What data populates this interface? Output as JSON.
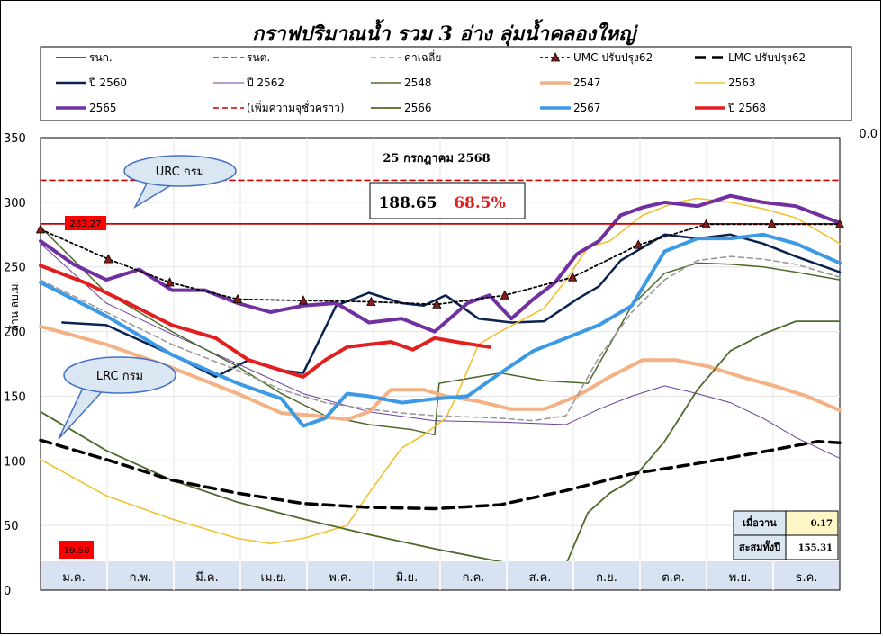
{
  "chart_data": {
    "type": "line",
    "title": "กราฟปริมาณน้ำ รวม 3 อ่าง ลุ่มน้ำคลองใหญ่",
    "ylabel": "ล้าน ลบ.ม.",
    "ylim": [
      0,
      350
    ],
    "yticks": [
      0,
      50,
      100,
      150,
      200,
      250,
      300,
      350
    ],
    "y2_label": "0.0",
    "months": [
      "ม.ค.",
      "ก.พ.",
      "มี.ค.",
      "เม.ย.",
      "พ.ค.",
      "มิ.ย.",
      "ก.ค.",
      "ส.ค.",
      "ก.ย.",
      "ต.ค.",
      "พ.ย.",
      "ธ.ค."
    ],
    "grid": true,
    "legend_position": "top",
    "date_label": "25 กรกฎาคม 2568",
    "current_volume": "188.65",
    "current_percent": "68.5%",
    "urc_label": "URC กรม",
    "lrc_label": "LRC กรม",
    "max_label": "283.27",
    "min_label": "19.50",
    "info_box": [
      {
        "label": "เมื่อวาน",
        "value": "0.17"
      },
      {
        "label": "สะสมทั้งปี",
        "value": "155.31"
      }
    ],
    "series": [
      {
        "name": "รนก.",
        "color": "#cc0000",
        "dash": "solid",
        "width": 1.8,
        "x": [
          0,
          365
        ],
        "y": [
          283.27,
          283.27
        ]
      },
      {
        "name": "รนต.",
        "color": "#cc0000",
        "dash": "dashed",
        "width": 1.6,
        "x": [
          0,
          365
        ],
        "y": [
          19.5,
          19.5
        ]
      },
      {
        "name": "ค่าเฉลี่ย",
        "color": "#9a9a9a",
        "dash": "dashed",
        "width": 1.6,
        "x": [
          0,
          30,
          60,
          90,
          110,
          130,
          150,
          165,
          180,
          195,
          210,
          225,
          240,
          255,
          270,
          285,
          300,
          315,
          330,
          345,
          365
        ],
        "y": [
          240,
          215,
          190,
          170,
          155,
          145,
          140,
          137,
          135,
          134,
          133,
          131,
          135,
          180,
          215,
          240,
          255,
          258,
          256,
          252,
          242
        ]
      },
      {
        "name": "UMC ปรับปรุง62",
        "color": "#000000",
        "dash": "dotted",
        "width": 1.8,
        "marker": "triangle",
        "x": [
          0,
          31,
          59,
          90,
          120,
          151,
          181,
          212,
          243,
          273,
          304,
          334,
          365
        ],
        "y": [
          279,
          256,
          238,
          225,
          224,
          223,
          221,
          228,
          242,
          267,
          283,
          283,
          283
        ]
      },
      {
        "name": "LMC ปรับปรุง62",
        "color": "#000000",
        "dash": "dashed",
        "width": 3.5,
        "x": [
          0,
          30,
          60,
          90,
          120,
          150,
          180,
          210,
          240,
          270,
          300,
          330,
          355,
          365
        ],
        "y": [
          116,
          101,
          85,
          75,
          67,
          64,
          63,
          66,
          77,
          90,
          98,
          107,
          115,
          114
        ]
      },
      {
        "name": "ปี 2560",
        "color": "#0b2250",
        "dash": "solid",
        "width": 2.5,
        "x": [
          10,
          30,
          60,
          80,
          95,
          110,
          120,
          135,
          150,
          165,
          175,
          185,
          200,
          215,
          230,
          245,
          255,
          265,
          275,
          285,
          300,
          315,
          330,
          345,
          365
        ],
        "y": [
          207,
          205,
          182,
          165,
          178,
          170,
          168,
          220,
          230,
          222,
          220,
          228,
          210,
          207,
          208,
          225,
          235,
          255,
          265,
          275,
          272,
          275,
          268,
          258,
          246
        ]
      },
      {
        "name": "ปี 2562",
        "color": "#6a3fa0",
        "dash": "solid",
        "width": 1,
        "x": [
          0,
          30,
          60,
          90,
          120,
          150,
          180,
          210,
          240,
          255,
          270,
          285,
          300,
          315,
          330,
          345,
          365
        ],
        "y": [
          268,
          222,
          198,
          175,
          152,
          138,
          131,
          130,
          128,
          140,
          150,
          158,
          152,
          145,
          133,
          118,
          102
        ]
      },
      {
        "name": "2548",
        "color": "#4d6a2a",
        "dash": "solid",
        "width": 1.5,
        "x": [
          0,
          30,
          60,
          90,
          110,
          130,
          150,
          170,
          180,
          182,
          210,
          230,
          250,
          270,
          285,
          300,
          315,
          330,
          345,
          365
        ],
        "y": [
          281,
          230,
          200,
          173,
          152,
          135,
          128,
          124,
          120,
          160,
          168,
          162,
          160,
          220,
          245,
          253,
          252,
          250,
          246,
          240
        ]
      },
      {
        "name": "2547",
        "color": "#f4b183",
        "dash": "solid",
        "width": 4,
        "x": [
          0,
          30,
          60,
          90,
          110,
          125,
          140,
          150,
          160,
          175,
          185,
          200,
          215,
          230,
          245,
          260,
          275,
          290,
          305,
          320,
          335,
          350,
          365
        ],
        "y": [
          204,
          190,
          172,
          152,
          137,
          135,
          132,
          138,
          155,
          155,
          150,
          146,
          140,
          140,
          150,
          165,
          178,
          178,
          173,
          165,
          158,
          150,
          139
        ]
      },
      {
        "name": "2563",
        "color": "#f2c12e",
        "dash": "solid",
        "width": 1.6,
        "x": [
          0,
          30,
          60,
          90,
          105,
          120,
          130,
          140,
          150,
          165,
          175,
          185,
          190,
          200,
          210,
          230,
          240,
          250,
          260,
          275,
          290,
          300,
          315,
          330,
          345,
          365
        ],
        "y": [
          101,
          73,
          55,
          40,
          36,
          40,
          45,
          50,
          75,
          110,
          120,
          133,
          150,
          190,
          200,
          218,
          240,
          265,
          270,
          290,
          300,
          303,
          300,
          295,
          288,
          268
        ]
      },
      {
        "name": "2565",
        "color": "#7030a0",
        "dash": "solid",
        "width": 4,
        "x": [
          0,
          15,
          30,
          45,
          60,
          75,
          90,
          105,
          120,
          135,
          150,
          165,
          180,
          195,
          205,
          215,
          225,
          235,
          245,
          255,
          265,
          275,
          285,
          300,
          315,
          330,
          345,
          365
        ],
        "y": [
          270,
          252,
          240,
          248,
          232,
          232,
          222,
          215,
          220,
          222,
          207,
          210,
          200,
          222,
          228,
          210,
          225,
          238,
          260,
          270,
          290,
          296,
          300,
          297,
          305,
          300,
          297,
          284
        ]
      },
      {
        "name": "(เพิ่มความจุชั่วคราว)",
        "color": "#cc0000",
        "dash": "dashed",
        "width": 1.6,
        "x": [
          0,
          365
        ],
        "y": [
          317,
          317
        ]
      },
      {
        "name": "2566",
        "color": "#4d6a2a",
        "dash": "solid",
        "width": 1.8,
        "x": [
          0,
          30,
          60,
          90,
          120,
          150,
          180,
          210,
          230,
          240,
          250,
          260,
          270,
          285,
          300,
          315,
          330,
          345,
          365
        ],
        "y": [
          138,
          108,
          85,
          68,
          55,
          43,
          32,
          22,
          17,
          20,
          60,
          75,
          85,
          115,
          155,
          185,
          198,
          208,
          208
        ]
      },
      {
        "name": "2567",
        "color": "#3b99e6",
        "dash": "solid",
        "width": 4,
        "x": [
          0,
          30,
          60,
          90,
          110,
          120,
          130,
          140,
          150,
          165,
          180,
          195,
          210,
          225,
          240,
          255,
          270,
          285,
          300,
          315,
          330,
          345,
          365
        ],
        "y": [
          238,
          212,
          182,
          160,
          148,
          127,
          133,
          152,
          150,
          145,
          148,
          150,
          168,
          185,
          195,
          205,
          220,
          262,
          272,
          272,
          275,
          268,
          253
        ]
      },
      {
        "name": "ปี 2568",
        "color": "#e21e1e",
        "dash": "solid",
        "width": 4,
        "x": [
          0,
          20,
          40,
          60,
          80,
          95,
          110,
          120,
          130,
          140,
          150,
          160,
          170,
          180,
          190,
          205
        ],
        "y": [
          251,
          238,
          222,
          205,
          195,
          178,
          170,
          165,
          178,
          188,
          190,
          192,
          186,
          195,
          192,
          188
        ]
      }
    ]
  }
}
